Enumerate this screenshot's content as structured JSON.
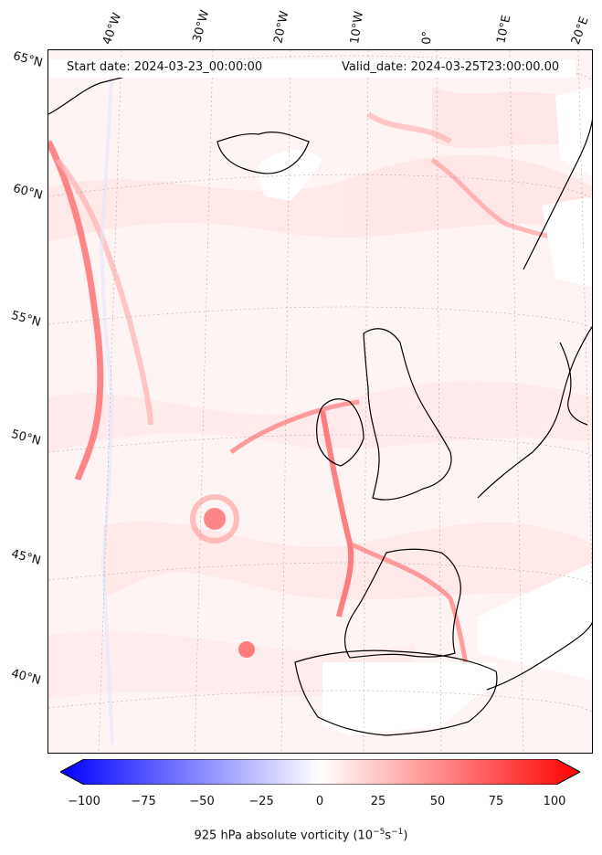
{
  "header": {
    "start_date": "Start date: 2024-03-23_00:00:00",
    "valid_date": "Valid_date: 2024-03-25T23:00:00.00"
  },
  "longitude_labels": [
    "40°W",
    "30°W",
    "20°W",
    "10°W",
    "0°",
    "10°E",
    "20°E"
  ],
  "latitude_labels": [
    "65°N",
    "60°N",
    "55°N",
    "50°N",
    "45°N",
    "40°N"
  ],
  "colorbar": {
    "ticks": [
      "−100",
      "−75",
      "−50",
      "−25",
      "0",
      "25",
      "50",
      "75",
      "100"
    ],
    "title": "925 hPa absolute vorticity (10",
    "title_exp1": "−5",
    "title_mid": "s",
    "title_exp2": "−1",
    "title_end": ")",
    "colors": {
      "min": "#0000ff",
      "mid": "#ffffff",
      "max": "#ff0000"
    },
    "range": [
      -100,
      100
    ]
  },
  "colors": {
    "coast": "#000000",
    "land_blank": "#ffffff",
    "field_background": "#fff5f5",
    "strong_vorticity": "#ff4040"
  },
  "map": {
    "projection": "Lambert conformal (North Atlantic / Western Europe)",
    "grid": true
  }
}
